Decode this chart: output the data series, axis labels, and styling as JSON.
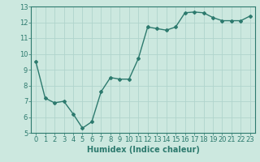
{
  "x": [
    0,
    1,
    2,
    3,
    4,
    5,
    6,
    7,
    8,
    9,
    10,
    11,
    12,
    13,
    14,
    15,
    16,
    17,
    18,
    19,
    20,
    21,
    22,
    23
  ],
  "y": [
    9.5,
    7.2,
    6.9,
    7.0,
    6.2,
    5.3,
    5.7,
    7.6,
    8.5,
    8.4,
    8.4,
    9.7,
    11.7,
    11.6,
    11.5,
    11.7,
    12.6,
    12.65,
    12.6,
    12.3,
    12.1,
    12.1,
    12.1,
    12.4
  ],
  "line_color": "#2d7a6e",
  "marker": "D",
  "markersize": 2.0,
  "linewidth": 1.0,
  "xlabel": "Humidex (Indice chaleur)",
  "xlim": [
    -0.5,
    23.5
  ],
  "ylim": [
    5,
    13
  ],
  "yticks": [
    5,
    6,
    7,
    8,
    9,
    10,
    11,
    12,
    13
  ],
  "xticks": [
    0,
    1,
    2,
    3,
    4,
    5,
    6,
    7,
    8,
    9,
    10,
    11,
    12,
    13,
    14,
    15,
    16,
    17,
    18,
    19,
    20,
    21,
    22,
    23
  ],
  "bg_color": "#cce8df",
  "grid_color": "#b0d4cc",
  "tick_color": "#2d7a6e",
  "label_color": "#2d7a6e",
  "xlabel_fontsize": 7.0,
  "tick_fontsize": 6.0
}
